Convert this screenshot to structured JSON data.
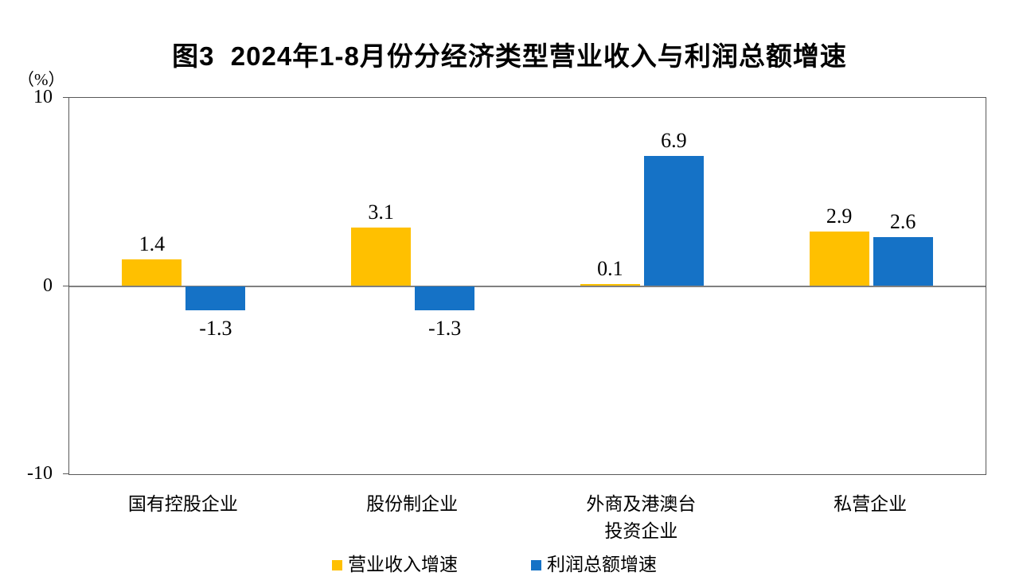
{
  "chart_data": {
    "type": "bar",
    "title": "图3  2024年1-8月份分经济类型营业收入与利润总额增速",
    "ylabel": "（%）",
    "xlabel": "",
    "ylim": [
      -10,
      10
    ],
    "yticks": [
      10,
      0,
      -10
    ],
    "ytick_labels": [
      "10",
      "0",
      "-10"
    ],
    "grid": "zero-baseline-only",
    "legend_position": "bottom-center",
    "categories": [
      "国有控股企业",
      "股份制企业",
      "外商及港澳台投资企业",
      "私营企业"
    ],
    "category_label_lines": [
      [
        "国有控股企业"
      ],
      [
        "股份制企业"
      ],
      [
        "外商及港澳台",
        "投资企业"
      ],
      [
        "私营企业"
      ]
    ],
    "series": [
      {
        "name": "营业收入增速",
        "color": "#FFC000",
        "values": [
          1.4,
          3.1,
          0.1,
          2.9
        ],
        "labels": [
          "1.4",
          "3.1",
          "0.1",
          "2.9"
        ]
      },
      {
        "name": "利润总额增速",
        "color": "#1572C6",
        "values": [
          -1.3,
          -1.3,
          6.9,
          2.6
        ],
        "labels": [
          "-1.3",
          "-1.3",
          "6.9",
          "2.6"
        ]
      }
    ],
    "colors": {
      "axis_border": "#595959",
      "zero_line": "#808080",
      "text": "#000000",
      "background": "#FFFFFF"
    }
  }
}
